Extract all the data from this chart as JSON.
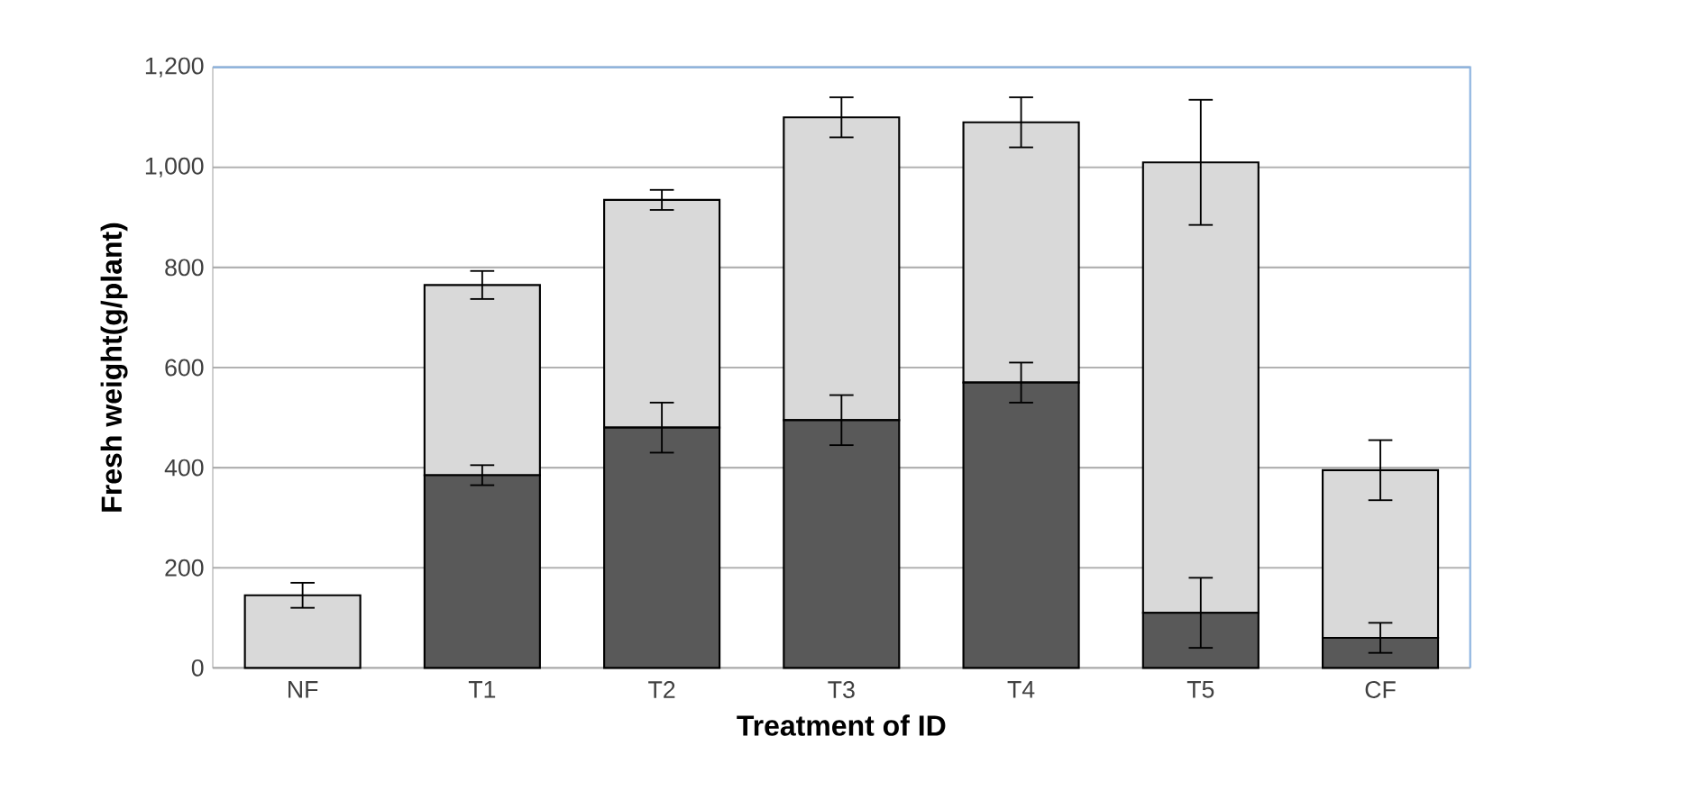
{
  "chart_data": {
    "type": "bar",
    "stacked": true,
    "xlabel": "Treatment of ID",
    "ylabel": "Fresh weight(g/plant)",
    "categories": [
      "NF",
      "T1",
      "T2",
      "T3",
      "T4",
      "T5",
      "CF"
    ],
    "series": [
      {
        "color": "#595959",
        "values": [
          0,
          385,
          480,
          495,
          570,
          110,
          60
        ],
        "errors": [
          null,
          20,
          50,
          50,
          40,
          70,
          30
        ]
      },
      {
        "color": "#d9d9d9",
        "values": [
          145,
          380,
          455,
          605,
          520,
          900,
          335
        ],
        "errors": [
          25,
          28,
          20,
          40,
          50,
          125,
          60
        ]
      }
    ],
    "ylim": [
      0,
      1200
    ],
    "yticks": [
      0,
      200,
      400,
      600,
      800,
      {
        "value": 1000,
        "label": "1,000"
      },
      {
        "value": 1200,
        "label": "1,200"
      }
    ],
    "grid": "y"
  }
}
